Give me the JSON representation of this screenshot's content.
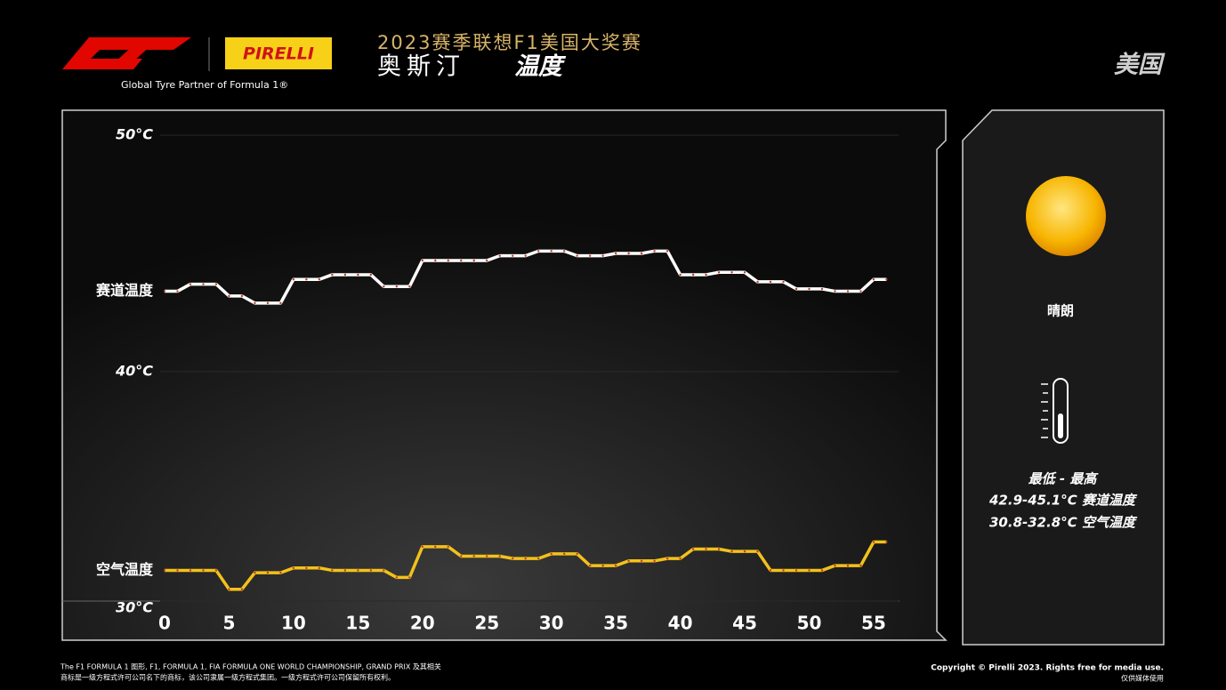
{
  "header": {
    "title": "2023赛季联想F1美国大奖赛",
    "city": "奥斯汀",
    "subject": "温度",
    "country": "美国",
    "partner": "Global Tyre Partner of Formula 1®",
    "pirelli": "PIRELLI"
  },
  "chart_data": {
    "type": "line",
    "x": [
      0,
      1,
      2,
      3,
      4,
      5,
      6,
      7,
      8,
      9,
      10,
      11,
      12,
      13,
      14,
      15,
      16,
      17,
      18,
      19,
      20,
      21,
      22,
      23,
      24,
      25,
      26,
      27,
      28,
      29,
      30,
      31,
      32,
      33,
      34,
      35,
      36,
      37,
      38,
      39,
      40,
      41,
      42,
      43,
      44,
      45,
      46,
      47,
      48,
      49,
      50,
      51,
      52,
      53,
      54,
      55,
      56
    ],
    "series": [
      {
        "name": "赛道温度",
        "color": "#ffffff",
        "values": [
          43.4,
          43.4,
          43.7,
          43.7,
          43.7,
          43.2,
          43.2,
          42.9,
          42.9,
          42.9,
          43.9,
          43.9,
          43.9,
          44.1,
          44.1,
          44.1,
          44.1,
          43.6,
          43.6,
          43.6,
          44.7,
          44.7,
          44.7,
          44.7,
          44.7,
          44.7,
          44.9,
          44.9,
          44.9,
          45.1,
          45.1,
          45.1,
          44.9,
          44.9,
          44.9,
          45.0,
          45.0,
          45.0,
          45.1,
          45.1,
          44.1,
          44.1,
          44.1,
          44.2,
          44.2,
          44.2,
          43.8,
          43.8,
          43.8,
          43.5,
          43.5,
          43.5,
          43.4,
          43.4,
          43.4,
          43.9,
          43.9
        ]
      },
      {
        "name": "空气温度",
        "color": "#f2c21b",
        "values": [
          31.6,
          31.6,
          31.6,
          31.6,
          31.6,
          30.8,
          30.8,
          31.5,
          31.5,
          31.5,
          31.7,
          31.7,
          31.7,
          31.6,
          31.6,
          31.6,
          31.6,
          31.6,
          31.3,
          31.3,
          32.6,
          32.6,
          32.6,
          32.2,
          32.2,
          32.2,
          32.2,
          32.1,
          32.1,
          32.1,
          32.3,
          32.3,
          32.3,
          31.8,
          31.8,
          31.8,
          32.0,
          32.0,
          32.0,
          32.1,
          32.1,
          32.5,
          32.5,
          32.5,
          32.4,
          32.4,
          32.4,
          31.6,
          31.6,
          31.6,
          31.6,
          31.6,
          31.8,
          31.8,
          31.8,
          32.8,
          32.8
        ]
      }
    ],
    "xlim": [
      0,
      57
    ],
    "xticks": [
      0,
      5,
      10,
      15,
      20,
      25,
      30,
      35,
      40,
      45,
      50,
      55
    ],
    "ylim": [
      30,
      50
    ],
    "yticks": [
      {
        "value": 30,
        "label": "30°C"
      },
      {
        "value": 40,
        "label": "40°C"
      },
      {
        "value": 50,
        "label": "50°C"
      }
    ]
  },
  "weather": {
    "condition": "晴朗",
    "range_title": "最低 - 最高",
    "track_range": "42.9-45.1°C 赛道温度",
    "air_range": "30.8-32.8°C 空气温度"
  },
  "footer": {
    "legal": [
      "The F1 FORMULA 1 图形, F1, FORMULA 1, FIA FORMULA ONE WORLD CHAMPIONSHIP, GRAND PRIX 及其相关",
      "商标是一级方程式许可公司名下的商标，该公司隶属一级方程式集团。一级方程式许可公司保留所有权利。"
    ],
    "copyright": "Copyright © Pirelli 2023. Rights free for media use.",
    "media": "仅供媒体使用"
  }
}
